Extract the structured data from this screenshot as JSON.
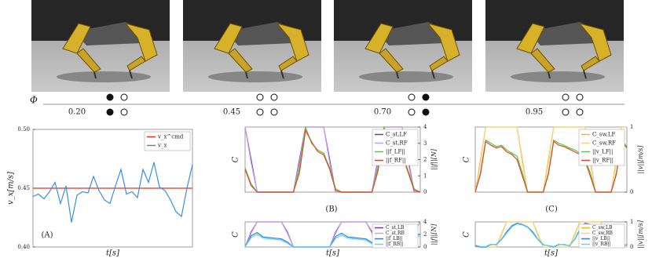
{
  "phase": {
    "symbol": "Φ",
    "states": [
      {
        "label": "0.20",
        "top": [
          true,
          false
        ],
        "bottom": [
          true,
          false
        ]
      },
      {
        "label": "0.45",
        "top": [
          false,
          false
        ],
        "bottom": [
          false,
          false
        ]
      },
      {
        "label": "0.70",
        "top": [
          false,
          true
        ],
        "bottom": [
          false,
          true
        ]
      },
      {
        "label": "0.95",
        "top": [
          false,
          false
        ],
        "bottom": [
          false,
          false
        ]
      }
    ]
  },
  "chart_data": [
    {
      "type": "line",
      "panel_label": "(A)",
      "xlabel": "t[s]",
      "ylabel": "v_x[m/s]",
      "legend": "upper right",
      "x": [
        0,
        1,
        2,
        3,
        4,
        5,
        6,
        7,
        8,
        9,
        10,
        11,
        12,
        13,
        14,
        15,
        16,
        17,
        18,
        19,
        20,
        21,
        22,
        23,
        24,
        25,
        26,
        27,
        28,
        29
      ],
      "xlim": [
        0,
        29
      ],
      "ylim": [
        0.4,
        0.5
      ],
      "yticks": [
        {
          "value": 0.4,
          "label": "0.40"
        },
        {
          "value": 0.45,
          "label": "0.45"
        },
        {
          "value": 0.5,
          "label": "0.50"
        }
      ],
      "series": [
        {
          "name": "v_x^cmd",
          "color": "#e03020",
          "x": [
            0,
            29
          ],
          "values": [
            0.45,
            0.45
          ]
        },
        {
          "name": "v_x",
          "color": "#3a8fd8",
          "values": [
            0.443,
            0.445,
            0.441,
            0.447,
            0.455,
            0.437,
            0.452,
            0.421,
            0.444,
            0.447,
            0.446,
            0.46,
            0.448,
            0.44,
            0.437,
            0.452,
            0.466,
            0.445,
            0.447,
            0.442,
            0.466,
            0.455,
            0.472,
            0.451,
            0.448,
            0.44,
            0.43,
            0.426,
            0.45,
            0.47
          ]
        }
      ]
    },
    {
      "type": "line",
      "panel_label": "(B)",
      "ylabel": "C",
      "y2label": "||f||[N]",
      "legend": "upper right",
      "x": [
        0,
        1,
        2,
        3,
        4,
        5,
        6,
        7,
        8,
        9,
        10,
        11,
        12,
        13,
        14,
        15,
        16,
        17,
        18,
        19,
        20,
        21,
        22,
        23,
        24,
        25,
        26,
        27,
        28,
        29
      ],
      "xlim": [
        0,
        29
      ],
      "ylim": [
        0,
        1
      ],
      "y2lim": [
        0,
        4
      ],
      "y2ticks": [
        0,
        1,
        2,
        3,
        4
      ],
      "series": [
        {
          "name": "C_st,LF",
          "color": "#7b2fbe",
          "values": [
            1,
            0.5,
            0,
            0,
            0,
            0,
            0,
            0,
            0,
            0.5,
            1,
            1,
            1,
            1,
            0.5,
            0,
            0,
            0,
            0,
            0,
            0,
            0,
            0.5,
            1,
            1,
            1,
            1,
            0.5,
            0,
            0
          ]
        },
        {
          "name": "C_st,RF",
          "color": "#c9a0e8",
          "values": [
            1,
            0.45,
            0,
            0,
            0,
            0,
            0,
            0,
            0,
            0.45,
            1,
            1,
            1,
            1,
            0.45,
            0,
            0,
            0,
            0,
            0,
            0,
            0,
            0.45,
            1,
            1,
            1,
            1,
            0.45,
            0,
            0
          ]
        },
        {
          "name": "||f_LF||",
          "color": "#5cc83a",
          "axis": "y2",
          "values": [
            1.5,
            0.5,
            0,
            0,
            0,
            0,
            0,
            0,
            0,
            1.5,
            4,
            3,
            2.6,
            2.4,
            1.5,
            0.2,
            0,
            0,
            0,
            0,
            0,
            0,
            1.5,
            4,
            3,
            2.7,
            2.4,
            1.3,
            0.2,
            0
          ]
        },
        {
          "name": "||f_RF||",
          "color": "#e0442a",
          "axis": "y2",
          "values": [
            1.4,
            0.4,
            0,
            0,
            0,
            0,
            0,
            0,
            0,
            1.2,
            3.8,
            3.1,
            2.5,
            2.3,
            1.4,
            0.1,
            0,
            0,
            0,
            0,
            0,
            0,
            1.3,
            3.7,
            3.2,
            2.6,
            2.3,
            1.2,
            0.1,
            0
          ]
        }
      ]
    },
    {
      "type": "line",
      "xlabel": "t[s]",
      "ylabel": "C",
      "y2label": "||f||[N]",
      "legend": "upper right",
      "x": [
        0,
        1,
        2,
        3,
        4,
        5,
        6,
        7,
        8,
        9,
        10,
        11,
        12,
        13,
        14,
        15,
        16,
        17,
        18,
        19,
        20,
        21,
        22,
        23,
        24,
        25,
        26,
        27,
        28,
        29
      ],
      "xlim": [
        0,
        29
      ],
      "ylim": [
        0,
        1
      ],
      "y2lim": [
        0,
        4
      ],
      "y2ticks": [
        0,
        2,
        4
      ],
      "series": [
        {
          "name": "C_st,LB",
          "color": "#7b2fbe",
          "values": [
            0,
            0.6,
            1,
            1,
            1,
            1,
            1,
            0.6,
            0,
            0,
            0,
            0,
            0,
            0,
            0,
            0.6,
            1,
            1,
            1,
            1,
            1,
            0.6,
            0,
            0,
            0,
            0,
            0,
            0,
            0.6,
            1
          ]
        },
        {
          "name": "C_st,RB",
          "color": "#c9a0e8",
          "values": [
            0,
            0.55,
            1,
            1,
            1,
            1,
            1,
            0.55,
            0,
            0,
            0,
            0,
            0,
            0,
            0,
            0.55,
            1,
            1,
            1,
            1,
            1,
            0.55,
            0,
            0,
            0,
            0,
            0,
            0,
            0.55,
            1
          ]
        },
        {
          "name": "||f_LB||",
          "color": "#2f7fd6",
          "axis": "y2",
          "values": [
            0,
            1.8,
            2.3,
            1.6,
            1.5,
            1.4,
            1.3,
            0.8,
            0,
            0,
            0,
            0,
            0,
            0,
            0,
            1.7,
            2.2,
            1.6,
            1.5,
            1.4,
            1.3,
            0.7,
            0,
            0,
            0,
            0,
            0,
            0,
            1.6,
            2.1
          ]
        },
        {
          "name": "||f_RB||",
          "color": "#5fd3f3",
          "axis": "y2",
          "values": [
            0,
            1.5,
            2,
            1.4,
            1.3,
            1.2,
            1.1,
            0.6,
            0,
            0,
            0,
            0,
            0,
            0,
            0,
            1.4,
            1.9,
            1.4,
            1.3,
            1.2,
            1.1,
            0.5,
            0,
            0,
            0,
            0,
            0,
            0,
            1.3,
            1.8
          ]
        }
      ]
    },
    {
      "type": "line",
      "panel_label": "(C)",
      "ylabel": "C",
      "y2label": "||v||[m/s]",
      "legend": "upper right",
      "x": [
        0,
        1,
        2,
        3,
        4,
        5,
        6,
        7,
        8,
        9,
        10,
        11,
        12,
        13,
        14,
        15,
        16,
        17,
        18,
        19,
        20,
        21,
        22,
        23,
        24,
        25,
        26,
        27,
        28,
        29
      ],
      "xlim": [
        0,
        29
      ],
      "ylim": [
        0,
        1
      ],
      "y2lim": [
        0,
        1
      ],
      "y2ticks": [
        0,
        1
      ],
      "series": [
        {
          "name": "C_sw,LF",
          "color": "#f0b429",
          "values": [
            0,
            0.5,
            1,
            1,
            1,
            1,
            1,
            1,
            1,
            0.5,
            0,
            0,
            0,
            0,
            0.5,
            1,
            1,
            1,
            1,
            1,
            1,
            1,
            0.5,
            0,
            0,
            0,
            0,
            0.5,
            1,
            1
          ]
        },
        {
          "name": "C_sw,RF",
          "color": "#f7d27a",
          "values": [
            0,
            0.45,
            1,
            1,
            1,
            1,
            1,
            1,
            1,
            0.45,
            0,
            0,
            0,
            0,
            0.45,
            1,
            1,
            1,
            1,
            1,
            1,
            1,
            0.45,
            0,
            0,
            0,
            0,
            0.45,
            1,
            1
          ]
        },
        {
          "name": "||v_LF||",
          "color": "#5cc83a",
          "axis": "y2",
          "values": [
            0,
            0.3,
            0.8,
            0.75,
            0.7,
            0.72,
            0.65,
            0.6,
            0.55,
            0.3,
            0,
            0,
            0,
            0,
            0.3,
            0.8,
            0.75,
            0.72,
            0.68,
            0.65,
            0.6,
            0.5,
            0.3,
            0,
            0,
            0,
            0,
            0.3,
            0.8,
            0.7
          ]
        },
        {
          "name": "||v_RF||",
          "color": "#e0442a",
          "axis": "y2",
          "values": [
            0,
            0.28,
            0.78,
            0.72,
            0.68,
            0.7,
            0.62,
            0.58,
            0.5,
            0.25,
            0,
            0,
            0,
            0,
            0.28,
            0.78,
            0.72,
            0.7,
            0.66,
            0.62,
            0.58,
            0.48,
            0.25,
            0,
            0,
            0,
            0,
            0.28,
            0.78,
            0.68
          ]
        }
      ]
    },
    {
      "type": "line",
      "xlabel": "t[s]",
      "ylabel": "C",
      "y2label": "||v||[m/s]",
      "legend": "upper right",
      "x": [
        0,
        1,
        2,
        3,
        4,
        5,
        6,
        7,
        8,
        9,
        10,
        11,
        12,
        13,
        14,
        15,
        16,
        17,
        18,
        19,
        20,
        21,
        22,
        23,
        24,
        25,
        26,
        27,
        28,
        29
      ],
      "xlim": [
        0,
        29
      ],
      "ylim": [
        0,
        1
      ],
      "y2lim": [
        0,
        1
      ],
      "y2ticks": [
        0,
        1
      ],
      "series": [
        {
          "name": "C_sw,LB",
          "color": "#f0b429",
          "values": [
            0,
            0,
            0,
            0,
            0,
            0.5,
            1,
            1,
            1,
            1,
            1,
            1,
            0.5,
            0,
            0,
            0,
            0,
            0,
            0,
            0.5,
            1,
            1,
            1,
            1,
            1,
            0.5,
            0,
            0,
            0,
            0
          ]
        },
        {
          "name": "C_sw,RB",
          "color": "#f7d27a",
          "values": [
            0,
            0,
            0,
            0,
            0,
            0.45,
            1,
            1,
            1,
            1,
            1,
            1,
            0.45,
            0,
            0,
            0,
            0,
            0,
            0,
            0.45,
            1,
            1,
            1,
            1,
            1,
            0.45,
            0,
            0,
            0,
            0
          ]
        },
        {
          "name": "||v_LB||",
          "color": "#2f7fd6",
          "axis": "y2",
          "values": [
            0.05,
            0,
            0,
            0.1,
            0.1,
            0.3,
            0.6,
            0.85,
            0.95,
            0.9,
            0.8,
            0.6,
            0.3,
            0.1,
            0.05,
            0,
            0.1,
            0.1,
            0.05,
            0.3,
            0.7,
            0.95,
            0.9,
            0.8,
            0.6,
            0.3,
            0.1,
            0.05,
            0,
            0.1
          ]
        },
        {
          "name": "||v_RB||",
          "color": "#5fd3f3",
          "axis": "y2",
          "values": [
            0.08,
            0.02,
            0.02,
            0.12,
            0.08,
            0.28,
            0.55,
            0.8,
            0.92,
            0.88,
            0.78,
            0.55,
            0.28,
            0.08,
            0.06,
            0.02,
            0.12,
            0.08,
            0.06,
            0.28,
            0.65,
            0.92,
            0.88,
            0.78,
            0.55,
            0.28,
            0.08,
            0.06,
            0.02,
            0.12
          ]
        }
      ]
    }
  ]
}
